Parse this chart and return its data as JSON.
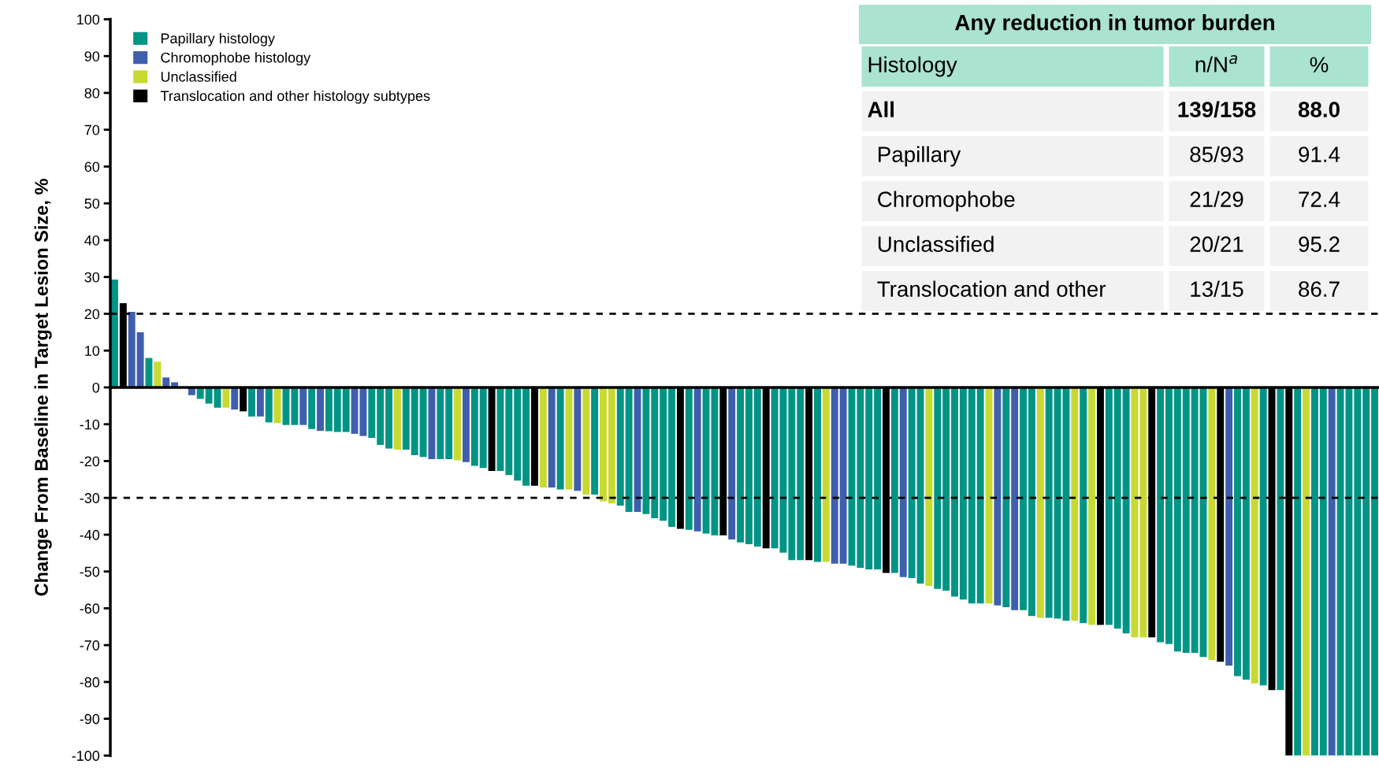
{
  "chart_data": {
    "type": "bar",
    "stacked": true,
    "ylabel": "Change From Baseline in Target Lesion Size, %",
    "categories": [
      null,
      null,
      null,
      null,
      null,
      null,
      null,
      null,
      null,
      null,
      null,
      null,
      null,
      null,
      null,
      null,
      null,
      null,
      null,
      null,
      null,
      null,
      null,
      null,
      null,
      null,
      null,
      null,
      null,
      null,
      null,
      null,
      null,
      null,
      null,
      null,
      null,
      null,
      null,
      null,
      null,
      null,
      null,
      null,
      null,
      null,
      null,
      null,
      null,
      null,
      null,
      null,
      null,
      null,
      null,
      null,
      null,
      null,
      null,
      null,
      null,
      null,
      null,
      null,
      null,
      null,
      null,
      null,
      null,
      null,
      null,
      null,
      null,
      null,
      null,
      null,
      null,
      null,
      null,
      null,
      null,
      null,
      null,
      null,
      null,
      null,
      null,
      null,
      null,
      null,
      null,
      null,
      null,
      null,
      null,
      null,
      null,
      null,
      null,
      null,
      null,
      null,
      null,
      null,
      null,
      null,
      null,
      null,
      null,
      null,
      null,
      null,
      null,
      null,
      null,
      null,
      null,
      null,
      null,
      null,
      null,
      null,
      null,
      null,
      null,
      null,
      null,
      null,
      null,
      null,
      null,
      null,
      null,
      null,
      null,
      null,
      null,
      null,
      null,
      null,
      null,
      null,
      null,
      null,
      null,
      null,
      null,
      null
    ],
    "series": [
      {
        "name": "Papillary histology",
        "color": "#009485",
        "values": [
          29.3,
          null,
          null,
          null,
          8.0,
          null,
          null,
          null,
          null,
          null,
          -3.1,
          -4.4,
          -5.5,
          null,
          null,
          null,
          -7.9,
          null,
          -9.5,
          null,
          -10.2,
          -10.2,
          null,
          -11.3,
          null,
          -11.9,
          -12.1,
          -12.1,
          null,
          null,
          -13.7,
          -15.6,
          -16.6,
          null,
          -16.9,
          -18.4,
          -18.9,
          null,
          -19.5,
          -19.5,
          null,
          null,
          -21.3,
          -21.9,
          null,
          -22.7,
          -23.8,
          -25.3,
          -26.7,
          null,
          null,
          null,
          -27.7,
          null,
          null,
          null,
          -29.1,
          null,
          null,
          -32.1,
          -33.8,
          null,
          -34.4,
          -35.5,
          -36.2,
          -37.9,
          null,
          -38.7,
          null,
          -39.7,
          -40.2,
          null,
          null,
          -42.1,
          -42.6,
          -43.2,
          null,
          -43.7,
          -44.9,
          -46.9,
          -46.9,
          null,
          -47.4,
          null,
          null,
          null,
          -48.4,
          -49.0,
          -49.4,
          -49.4,
          null,
          -50.4,
          null,
          -51.8,
          -53.3,
          null,
          -54.7,
          -55.2,
          -56.8,
          -57.6,
          -58.7,
          -58.7,
          null,
          null,
          -59.7,
          null,
          -60.5,
          -62.1,
          null,
          -62.6,
          -62.8,
          -63.4,
          null,
          -64.0,
          null,
          null,
          -64.5,
          -65.5,
          -66.8,
          null,
          null,
          null,
          -69.2,
          -69.7,
          -71.7,
          -72.1,
          -72.1,
          -73.2,
          null,
          null,
          null,
          -78.4,
          -79.4,
          null,
          -80.9,
          null,
          -82.2,
          null,
          -100,
          null,
          -100,
          -100,
          null,
          -100,
          -100,
          -100,
          -100,
          -100
        ]
      },
      {
        "name": "Chromophobe histology",
        "color": "#3f5fad",
        "values": [
          null,
          null,
          20.5,
          15.0,
          null,
          null,
          2.7,
          1.4,
          null,
          -2.1,
          null,
          null,
          null,
          null,
          -6.0,
          null,
          null,
          -7.9,
          null,
          null,
          null,
          null,
          -10.2,
          null,
          -11.8,
          null,
          null,
          null,
          -12.6,
          -13.2,
          null,
          null,
          null,
          null,
          null,
          null,
          null,
          -19.5,
          null,
          null,
          null,
          -20.3,
          null,
          null,
          null,
          null,
          null,
          null,
          null,
          null,
          null,
          -27.2,
          null,
          null,
          -28.1,
          null,
          null,
          null,
          null,
          null,
          null,
          -33.8,
          null,
          null,
          null,
          null,
          null,
          null,
          -39.1,
          null,
          null,
          null,
          -41.3,
          null,
          null,
          null,
          null,
          null,
          null,
          null,
          null,
          null,
          null,
          null,
          -47.9,
          -47.9,
          null,
          null,
          null,
          null,
          null,
          null,
          -51.5,
          null,
          null,
          null,
          null,
          null,
          null,
          null,
          null,
          null,
          null,
          -59.2,
          null,
          -60.5,
          null,
          null,
          null,
          null,
          null,
          null,
          null,
          null,
          null,
          null,
          null,
          null,
          null,
          null,
          null,
          null,
          null,
          null,
          null,
          null,
          null,
          null,
          null,
          null,
          -75.6,
          null,
          null,
          null,
          null,
          null,
          null,
          null,
          null,
          null,
          null,
          null,
          -100,
          null,
          null,
          null,
          null,
          null
        ]
      },
      {
        "name": "Unclassified",
        "color": "#c8d932",
        "values": [
          null,
          null,
          null,
          null,
          null,
          7.0,
          null,
          null,
          null,
          null,
          null,
          null,
          null,
          -5.5,
          null,
          null,
          null,
          null,
          null,
          -9.7,
          null,
          null,
          null,
          null,
          null,
          null,
          null,
          null,
          null,
          null,
          null,
          null,
          null,
          -16.9,
          null,
          null,
          null,
          null,
          null,
          null,
          -19.8,
          null,
          null,
          null,
          null,
          null,
          null,
          null,
          null,
          null,
          -27.2,
          null,
          null,
          -27.7,
          null,
          -29.1,
          null,
          -30.9,
          -31.5,
          null,
          null,
          null,
          null,
          null,
          null,
          null,
          null,
          null,
          null,
          null,
          null,
          null,
          null,
          null,
          null,
          null,
          null,
          null,
          null,
          null,
          null,
          null,
          null,
          -47.4,
          null,
          null,
          null,
          null,
          null,
          null,
          null,
          null,
          null,
          null,
          null,
          -53.9,
          null,
          null,
          null,
          null,
          null,
          null,
          -58.7,
          null,
          null,
          null,
          null,
          null,
          -62.6,
          null,
          null,
          null,
          -63.4,
          null,
          -64.5,
          null,
          null,
          null,
          null,
          -67.9,
          -67.9,
          null,
          null,
          null,
          null,
          null,
          null,
          null,
          -74.0,
          null,
          null,
          null,
          null,
          -80.4,
          null,
          null,
          null,
          null,
          null,
          -100,
          null,
          null,
          null,
          null,
          null,
          null,
          null,
          null
        ]
      },
      {
        "name": "Translocation and other histology subtypes",
        "color": "#000000",
        "values": [
          null,
          22.9,
          null,
          null,
          null,
          null,
          null,
          null,
          null,
          null,
          null,
          null,
          null,
          null,
          null,
          -6.5,
          null,
          null,
          null,
          null,
          null,
          null,
          null,
          null,
          null,
          null,
          null,
          null,
          null,
          null,
          null,
          null,
          null,
          null,
          null,
          null,
          null,
          null,
          null,
          null,
          null,
          null,
          null,
          null,
          -22.7,
          null,
          null,
          null,
          null,
          -26.7,
          null,
          null,
          null,
          null,
          null,
          null,
          null,
          null,
          null,
          null,
          null,
          null,
          null,
          null,
          null,
          null,
          -38.4,
          null,
          null,
          null,
          null,
          -40.2,
          null,
          null,
          null,
          null,
          -43.7,
          null,
          null,
          null,
          null,
          -46.9,
          null,
          null,
          null,
          null,
          null,
          null,
          null,
          null,
          -50.4,
          null,
          null,
          null,
          null,
          null,
          null,
          null,
          null,
          null,
          null,
          null,
          null,
          null,
          null,
          null,
          null,
          null,
          null,
          null,
          null,
          null,
          null,
          null,
          null,
          -64.5,
          null,
          null,
          null,
          null,
          null,
          -67.9,
          null,
          null,
          null,
          null,
          null,
          null,
          null,
          -74.5,
          null,
          null,
          null,
          null,
          null,
          -82.2,
          null,
          -100,
          null,
          null,
          null,
          null,
          null,
          null,
          null,
          null,
          null,
          null
        ]
      }
    ],
    "ylim": [
      -100,
      100
    ],
    "yticks": [
      -100,
      -90,
      -80,
      -70,
      -60,
      -50,
      -40,
      -30,
      -20,
      -10,
      0,
      10,
      20,
      30,
      40,
      50,
      60,
      70,
      80,
      90,
      100
    ],
    "ref_lines": [
      {
        "axis": "y",
        "value": 20,
        "color": "#000000",
        "line_style": "dashed"
      },
      {
        "axis": "y",
        "value": -30,
        "color": "#000000",
        "line_style": "dashed"
      }
    ],
    "grid": false,
    "legend": "top left",
    "tick_labels": "y",
    "annotations": [
      "Any reduction in tumor burden",
      "Histology",
      "n/N$^{a}$",
      "%",
      "All",
      "139/158",
      "88.0",
      "Papillary",
      "85/93",
      "91.4",
      "Chromophobe",
      "21/29",
      "72.4",
      "Unclassified",
      "20/21",
      "95.2",
      "Translocation and other",
      "13/15",
      "86.7"
    ]
  }
}
